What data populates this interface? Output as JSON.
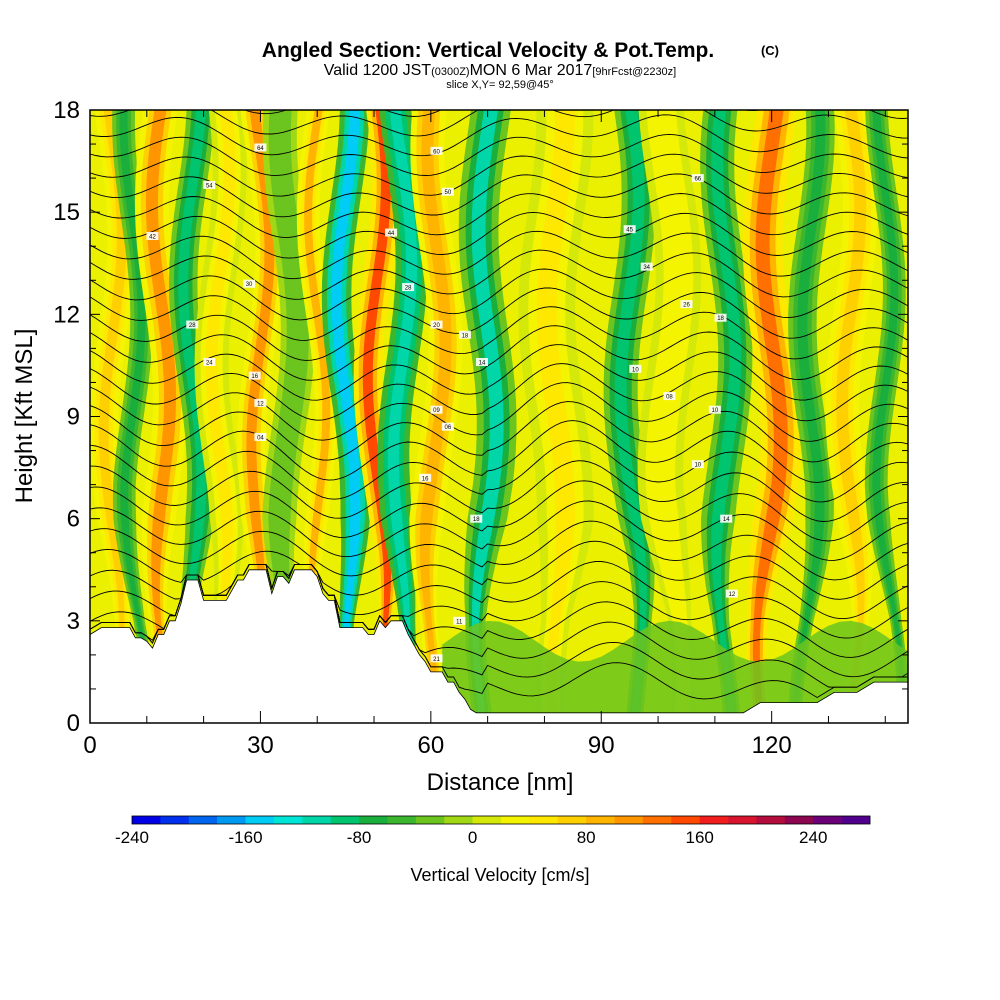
{
  "chart_data": {
    "type": "heatmap",
    "title": "Angled Section: Vertical Velocity & Pot.Temp.",
    "title_unit": "(C)",
    "subtitle": {
      "valid": "Valid 1200 JST",
      "utc": "(0300Z)",
      "date": "MON 6 Mar 2017",
      "fcst": "[9hrFcst@2230z]"
    },
    "slice_label": "slice X,Y= 92,59@45°",
    "xlabel": "Distance [nm]",
    "ylabel": "Height [Kft MSL]",
    "xlim": [
      0,
      144
    ],
    "ylim": [
      0,
      18
    ],
    "x_ticks": [
      "0",
      "30",
      "60",
      "90",
      "120"
    ],
    "x_tick_values": [
      0,
      30,
      60,
      90,
      120
    ],
    "y_ticks": [
      "0",
      "3",
      "6",
      "9",
      "12",
      "15",
      "18"
    ],
    "y_tick_values": [
      0,
      3,
      6,
      9,
      12,
      15,
      18
    ],
    "grid": false,
    "colorbar": {
      "label": "Vertical Velocity [cm/s]",
      "min": -240,
      "max": 280,
      "tick_labels": [
        "-240",
        "-160",
        "-80",
        "0",
        "80",
        "160",
        "240"
      ],
      "tick_values": [
        -240,
        -160,
        -80,
        0,
        80,
        160,
        240
      ],
      "colors": [
        "#0000e6",
        "#0030ee",
        "#0066f0",
        "#0099f2",
        "#00ccf5",
        "#00e6d6",
        "#00d6a8",
        "#00c46e",
        "#1aaf3c",
        "#3cb62e",
        "#6cc41e",
        "#a0d816",
        "#d4e80a",
        "#f4f400",
        "#ffe800",
        "#ffd000",
        "#ffb400",
        "#ff9600",
        "#ff7000",
        "#ff4800",
        "#f21e1e",
        "#d8142e",
        "#b40c3c",
        "#8c0650",
        "#6c0078",
        "#50008c"
      ]
    },
    "terrain_profile": {
      "x": [
        0,
        2,
        3,
        4,
        5,
        6,
        7,
        8,
        9,
        10,
        11,
        12,
        13,
        14,
        15,
        16,
        17,
        18,
        19,
        20,
        21,
        22,
        23,
        24,
        25,
        26,
        27,
        28,
        29,
        30,
        31,
        32,
        33,
        34,
        35,
        36,
        37,
        38,
        39,
        40,
        41,
        42,
        43,
        44,
        45,
        46,
        47,
        48,
        49,
        50,
        51,
        52,
        53,
        54,
        55,
        56,
        57,
        58,
        59,
        60,
        61,
        62,
        63,
        64,
        65,
        66,
        67,
        68,
        69,
        70,
        75,
        80,
        85,
        90,
        95,
        100,
        105,
        110,
        113,
        115,
        118,
        120,
        124,
        128,
        131,
        135,
        138,
        140,
        144
      ],
      "height_kft": [
        2.6,
        2.8,
        2.8,
        2.8,
        2.8,
        2.8,
        2.8,
        2.5,
        2.5,
        2.4,
        2.2,
        2.6,
        2.6,
        3.0,
        3.0,
        3.5,
        4.2,
        4.2,
        4.2,
        3.6,
        3.6,
        3.6,
        3.6,
        3.6,
        3.9,
        4.2,
        4.2,
        4.5,
        4.5,
        4.5,
        4.5,
        3.8,
        4.3,
        4.3,
        4.1,
        4.5,
        4.5,
        4.5,
        4.5,
        4.3,
        3.8,
        3.6,
        3.6,
        2.8,
        2.8,
        2.8,
        2.8,
        2.8,
        2.6,
        2.6,
        3.0,
        2.8,
        3.0,
        3.0,
        3.0,
        2.6,
        2.3,
        2.0,
        1.8,
        1.5,
        1.5,
        1.5,
        1.2,
        1.2,
        0.9,
        0.7,
        0.4,
        0.3,
        0.3,
        0.3,
        0.3,
        0.3,
        0.3,
        0.3,
        0.3,
        0.3,
        0.3,
        0.3,
        0.3,
        0.3,
        0.6,
        0.6,
        0.6,
        0.6,
        0.9,
        0.9,
        1.2,
        1.2,
        1.2
      ]
    },
    "velocity_bands": [
      {
        "x": 4,
        "width": 2.5,
        "value": 70
      },
      {
        "x": 7.5,
        "width": 2.0,
        "value": -70
      },
      {
        "x": 12.5,
        "width": 3.0,
        "value": 110
      },
      {
        "x": 18,
        "width": 2.5,
        "value": -100
      },
      {
        "x": 23,
        "width": 3.0,
        "value": 40
      },
      {
        "x": 30,
        "width": 2.5,
        "value": 110
      },
      {
        "x": 35,
        "width": 3.0,
        "value": -30
      },
      {
        "x": 40,
        "width": 2.0,
        "value": 80
      },
      {
        "x": 45,
        "width": 2.6,
        "value": -160
      },
      {
        "x": 50.5,
        "width": 2.5,
        "value": 140
      },
      {
        "x": 55,
        "width": 2.8,
        "value": -120
      },
      {
        "x": 61,
        "width": 3.0,
        "value": 90
      },
      {
        "x": 70,
        "width": 3.5,
        "value": -110
      },
      {
        "x": 82,
        "width": 5.0,
        "value": 40
      },
      {
        "x": 95,
        "width": 3.0,
        "value": -100
      },
      {
        "x": 102,
        "width": 4.0,
        "value": 30
      },
      {
        "x": 112,
        "width": 3.0,
        "value": -100
      },
      {
        "x": 120,
        "width": 3.5,
        "value": 130
      },
      {
        "x": 127,
        "width": 2.5,
        "value": -80
      },
      {
        "x": 134,
        "width": 3.0,
        "value": 70
      },
      {
        "x": 140,
        "width": 2.0,
        "value": -80
      }
    ],
    "isentrope_levels": 31,
    "isentrope_labels": [
      {
        "x": 30,
        "y": 16.9,
        "text": "64"
      },
      {
        "x": 61,
        "y": 16.8,
        "text": "60"
      },
      {
        "x": 107,
        "y": 16.0,
        "text": "66"
      },
      {
        "x": 21,
        "y": 15.8,
        "text": "54"
      },
      {
        "x": 63,
        "y": 15.6,
        "text": "50"
      },
      {
        "x": 11,
        "y": 14.3,
        "text": "42"
      },
      {
        "x": 53,
        "y": 14.4,
        "text": "44"
      },
      {
        "x": 95,
        "y": 14.5,
        "text": "45"
      },
      {
        "x": 28,
        "y": 12.9,
        "text": "30"
      },
      {
        "x": 98,
        "y": 13.4,
        "text": "34"
      },
      {
        "x": 56,
        "y": 12.8,
        "text": "28"
      },
      {
        "x": 105,
        "y": 12.3,
        "text": "26"
      },
      {
        "x": 18,
        "y": 11.7,
        "text": "28"
      },
      {
        "x": 61,
        "y": 11.7,
        "text": "20"
      },
      {
        "x": 111,
        "y": 11.9,
        "text": "18"
      },
      {
        "x": 66,
        "y": 11.4,
        "text": "18"
      },
      {
        "x": 21,
        "y": 10.6,
        "text": "24"
      },
      {
        "x": 69,
        "y": 10.6,
        "text": "14"
      },
      {
        "x": 96,
        "y": 10.4,
        "text": "10"
      },
      {
        "x": 29,
        "y": 10.2,
        "text": "16"
      },
      {
        "x": 102,
        "y": 9.6,
        "text": "08"
      },
      {
        "x": 30,
        "y": 9.4,
        "text": "12"
      },
      {
        "x": 61,
        "y": 9.2,
        "text": "09"
      },
      {
        "x": 110,
        "y": 9.2,
        "text": "10"
      },
      {
        "x": 63,
        "y": 8.7,
        "text": "06"
      },
      {
        "x": 30,
        "y": 8.4,
        "text": "04"
      },
      {
        "x": 107,
        "y": 7.6,
        "text": "10"
      },
      {
        "x": 59,
        "y": 7.2,
        "text": "16"
      },
      {
        "x": 68,
        "y": 6.0,
        "text": "18"
      },
      {
        "x": 112,
        "y": 6.0,
        "text": "14"
      },
      {
        "x": 113,
        "y": 3.8,
        "text": "12"
      },
      {
        "x": 65,
        "y": 3.0,
        "text": "11"
      },
      {
        "x": 61,
        "y": 1.9,
        "text": "21"
      }
    ]
  }
}
